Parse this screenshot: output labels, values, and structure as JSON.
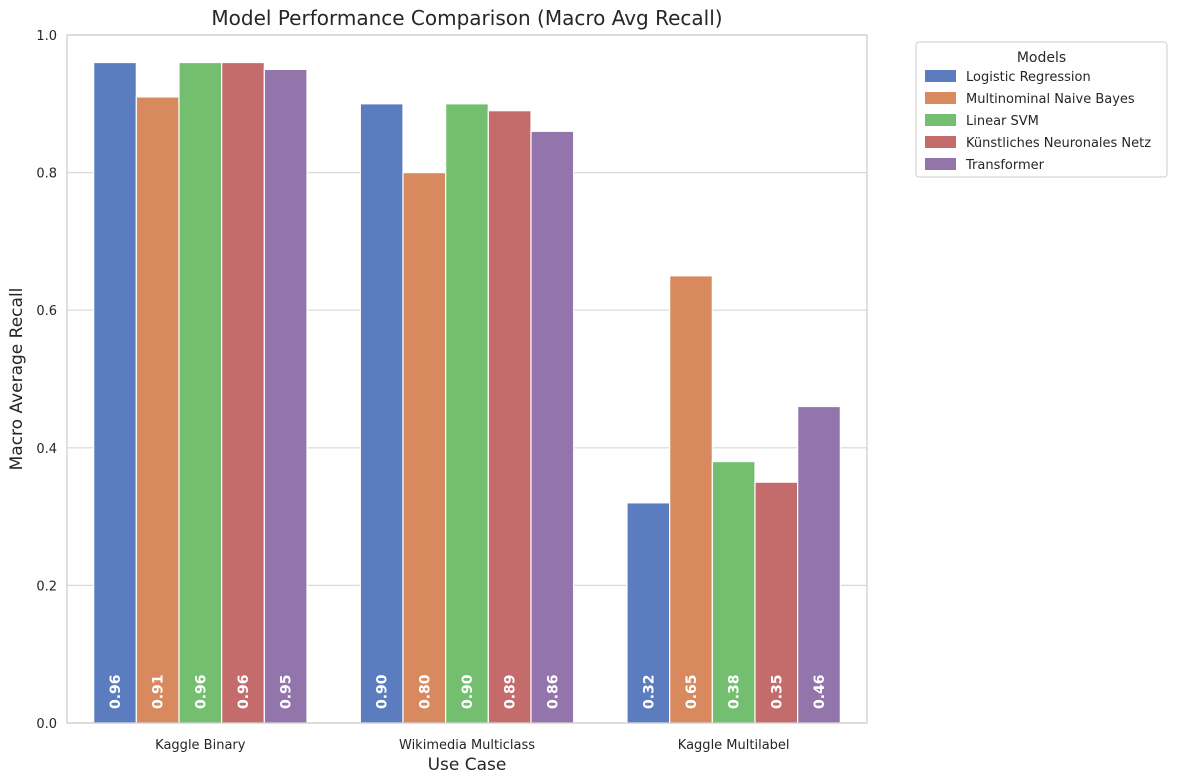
{
  "chart_data": {
    "type": "bar",
    "title": "Model Performance Comparison (Macro Avg Recall)",
    "xlabel": "Use Case",
    "ylabel": "Macro Average Recall",
    "ylim": [
      0,
      1.0
    ],
    "yticks": [
      "0.0",
      "0.2",
      "0.4",
      "0.6",
      "0.8",
      "1.0"
    ],
    "grid": "horizontal",
    "legend_title": "Models",
    "legend_position": "outside-top-right",
    "categories": [
      "Kaggle Binary",
      "Wikimedia Multiclass",
      "Kaggle Multilabel"
    ],
    "series": [
      {
        "name": "Logistic Regression",
        "color": "#5b7dc0",
        "values": [
          0.96,
          0.9,
          0.32
        ],
        "labels": [
          "0.96",
          "0.90",
          "0.32"
        ]
      },
      {
        "name": "Multinominal Naive Bayes",
        "color": "#d88a5e",
        "values": [
          0.91,
          0.8,
          0.65
        ],
        "labels": [
          "0.91",
          "0.80",
          "0.65"
        ]
      },
      {
        "name": "Linear SVM",
        "color": "#74bf6f",
        "values": [
          0.96,
          0.9,
          0.38
        ],
        "labels": [
          "0.96",
          "0.90",
          "0.38"
        ]
      },
      {
        "name": "Künstliches Neuronales Netz",
        "color": "#c46c6c",
        "values": [
          0.96,
          0.89,
          0.35
        ],
        "labels": [
          "0.96",
          "0.89",
          "0.35"
        ]
      },
      {
        "name": "Transformer",
        "color": "#9475ab",
        "values": [
          0.95,
          0.86,
          0.46
        ],
        "labels": [
          "0.95",
          "0.86",
          "0.46"
        ]
      }
    ]
  }
}
